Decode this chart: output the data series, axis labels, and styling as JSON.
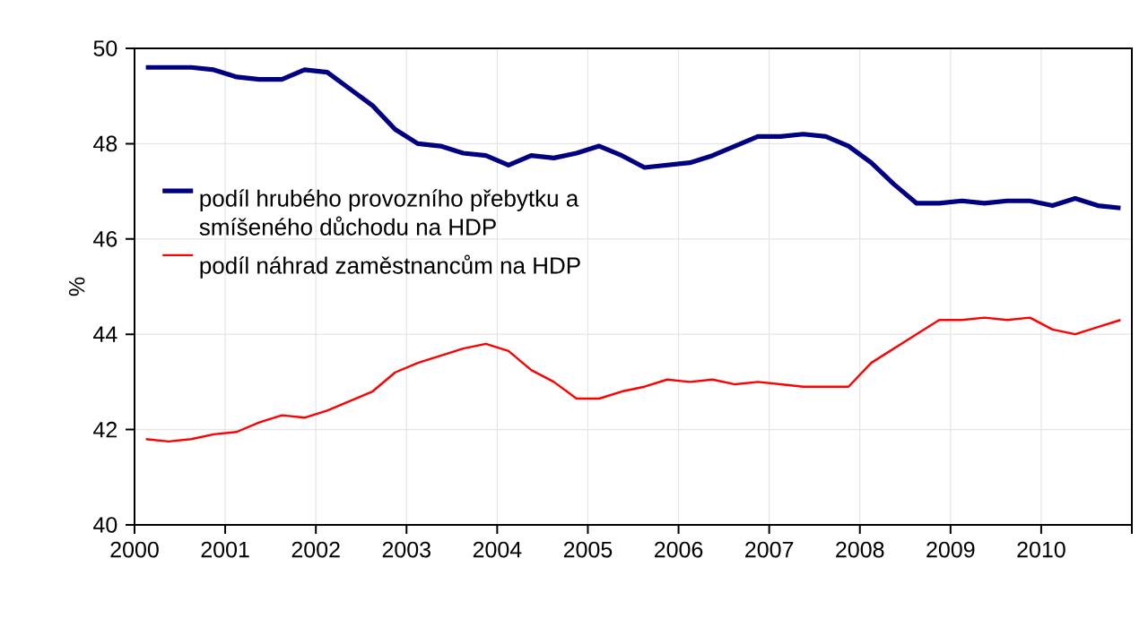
{
  "chart_data": {
    "type": "line",
    "ylabel": "%",
    "x": [
      2000.125,
      2000.375,
      2000.625,
      2000.875,
      2001.125,
      2001.375,
      2001.625,
      2001.875,
      2002.125,
      2002.375,
      2002.625,
      2002.875,
      2003.125,
      2003.375,
      2003.625,
      2003.875,
      2004.125,
      2004.375,
      2004.625,
      2004.875,
      2005.125,
      2005.375,
      2005.625,
      2005.875,
      2006.125,
      2006.375,
      2006.625,
      2006.875,
      2007.125,
      2007.375,
      2007.625,
      2007.875,
      2008.125,
      2008.375,
      2008.625,
      2008.875,
      2009.125,
      2009.375,
      2009.625,
      2009.875,
      2010.125,
      2010.375,
      2010.625,
      2010.875
    ],
    "series": [
      {
        "name": "podíl hrubého provozního přebytku a smíšeného důchodu na HDP",
        "color": "#000080",
        "values": [
          49.6,
          49.6,
          49.6,
          49.55,
          49.4,
          49.35,
          49.35,
          49.55,
          49.5,
          49.15,
          48.8,
          48.3,
          48.0,
          47.95,
          47.8,
          47.75,
          47.55,
          47.75,
          47.7,
          47.8,
          47.95,
          47.75,
          47.5,
          47.55,
          47.6,
          47.75,
          47.95,
          48.15,
          48.15,
          48.2,
          48.15,
          47.95,
          47.6,
          47.15,
          46.75,
          46.75,
          46.8,
          46.75,
          46.8,
          46.8,
          46.7,
          46.85,
          46.7,
          46.65
        ]
      },
      {
        "name": "podíl náhrad zaměstnancům na HDP",
        "color": "#ff0000",
        "values": [
          41.8,
          41.75,
          41.8,
          41.9,
          41.95,
          42.15,
          42.3,
          42.25,
          42.4,
          42.6,
          42.8,
          43.2,
          43.4,
          43.55,
          43.7,
          43.8,
          43.65,
          43.25,
          43.0,
          42.65,
          42.65,
          42.8,
          42.9,
          43.05,
          43.0,
          43.05,
          42.95,
          43.0,
          42.95,
          42.9,
          42.9,
          42.9,
          43.4,
          43.7,
          44.0,
          44.3,
          44.3,
          44.35,
          44.3,
          44.35,
          44.1,
          44.0,
          44.15,
          44.3
        ]
      }
    ],
    "xlim": [
      2000,
      2011
    ],
    "xticks": [
      2000,
      2001,
      2002,
      2003,
      2004,
      2005,
      2006,
      2007,
      2008,
      2009,
      2010,
      {
        "value": 2011,
        "label": null
      }
    ],
    "ylim": [
      40,
      50
    ],
    "yticks": [
      40,
      42,
      44,
      46,
      48,
      50
    ],
    "grid": true,
    "legend": "left",
    "marker": "none",
    "line_style": "solid"
  }
}
